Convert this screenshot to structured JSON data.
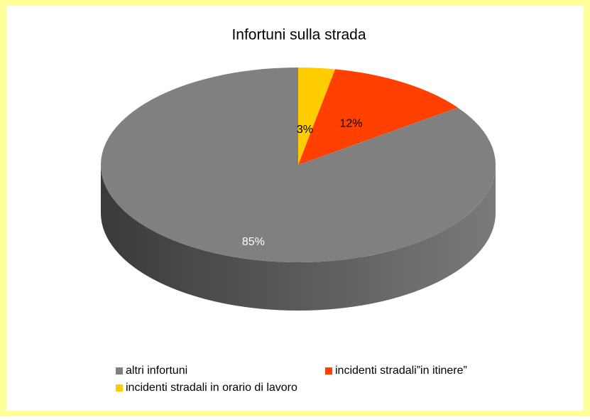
{
  "chart_data": {
    "type": "pie",
    "title": "Infortuni sulla strada",
    "categories": [
      "altri infortuni",
      "incidenti stradali”in itinere”",
      "incidenti stradali in orario di lavoro"
    ],
    "values": [
      85,
      12,
      3
    ],
    "value_labels": [
      "85%",
      "12%",
      "3%"
    ],
    "colors": [
      "#808080",
      "#ff4000",
      "#ffcc00"
    ],
    "legend": "bottom"
  }
}
